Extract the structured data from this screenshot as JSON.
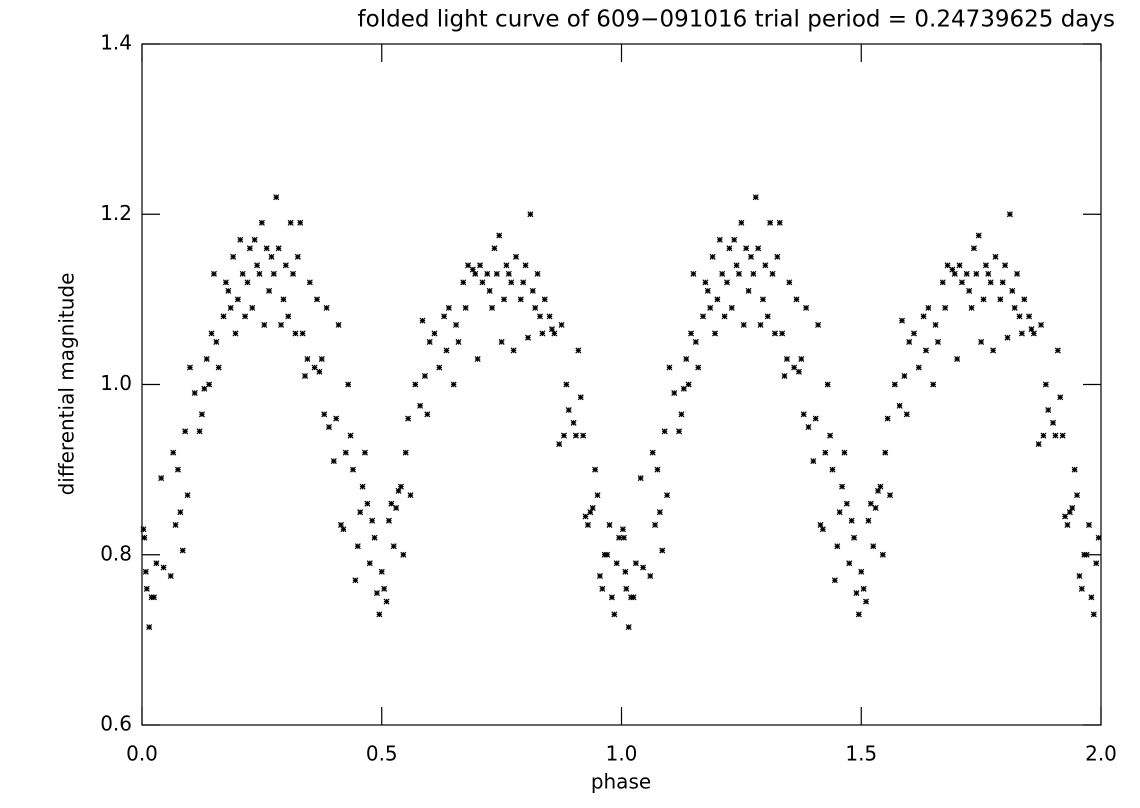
{
  "chart_data": {
    "type": "scatter",
    "title": "folded light curve of 609−091016 trial period =  0.24739625 days",
    "xlabel": "phase",
    "ylabel": "differential magnitude",
    "xlim": [
      0,
      2
    ],
    "ylim": [
      0.6,
      1.4
    ],
    "xticks": [
      {
        "value": 0,
        "label": "0.0"
      },
      0.5,
      {
        "value": 1,
        "label": "1.0"
      },
      1.5,
      {
        "value": 2,
        "label": "2.0"
      }
    ],
    "yticks": [
      0.6,
      0.8,
      {
        "value": 1,
        "label": "1.0"
      },
      1.2,
      1.4
    ],
    "color": "#000000",
    "x": [
      0.003,
      0.005,
      0.008,
      0.01,
      0.015,
      0.02,
      0.025,
      0.03,
      0.04,
      0.045,
      0.06,
      0.065,
      0.07,
      0.075,
      0.08,
      0.085,
      0.09,
      0.095,
      0.1,
      0.11,
      0.12,
      0.125,
      0.13,
      0.135,
      0.14,
      0.145,
      0.15,
      0.155,
      0.16,
      0.17,
      0.175,
      0.18,
      0.185,
      0.19,
      0.195,
      0.2,
      0.205,
      0.21,
      0.215,
      0.22,
      0.225,
      0.23,
      0.235,
      0.24,
      0.245,
      0.25,
      0.255,
      0.26,
      0.265,
      0.27,
      0.275,
      0.28,
      0.285,
      0.29,
      0.295,
      0.3,
      0.305,
      0.31,
      0.315,
      0.32,
      0.325,
      0.33,
      0.335,
      0.34,
      0.345,
      0.35,
      0.36,
      0.365,
      0.37,
      0.375,
      0.38,
      0.385,
      0.39,
      0.4,
      0.405,
      0.41,
      0.415,
      0.42,
      0.425,
      0.43,
      0.435,
      0.44,
      0.445,
      0.45,
      0.455,
      0.46,
      0.465,
      0.47,
      0.475,
      0.48,
      0.485,
      0.49,
      0.495,
      0.5,
      0.505,
      0.51,
      0.515,
      0.52,
      0.525,
      0.53,
      0.535,
      0.54,
      0.545,
      0.55,
      0.555,
      0.56,
      0.57,
      0.58,
      0.585,
      0.59,
      0.595,
      0.6,
      0.61,
      0.62,
      0.63,
      0.635,
      0.64,
      0.65,
      0.655,
      0.66,
      0.67,
      0.675,
      0.68,
      0.69,
      0.695,
      0.7,
      0.705,
      0.71,
      0.72,
      0.725,
      0.73,
      0.735,
      0.74,
      0.745,
      0.75,
      0.755,
      0.76,
      0.765,
      0.77,
      0.775,
      0.78,
      0.79,
      0.795,
      0.8,
      0.805,
      0.81,
      0.815,
      0.82,
      0.825,
      0.83,
      0.835,
      0.84,
      0.85,
      0.855,
      0.86,
      0.87,
      0.875,
      0.88,
      0.885,
      0.89,
      0.9,
      0.905,
      0.91,
      0.915,
      0.92,
      0.925,
      0.93,
      0.935,
      0.94,
      0.945,
      0.95,
      0.955,
      0.96,
      0.965,
      0.97,
      0.975,
      0.98,
      0.985,
      0.99,
      0.995,
      1.003,
      1.005,
      1.008,
      1.01,
      1.015,
      1.02,
      1.025,
      1.03,
      1.04,
      1.045,
      1.06,
      1.065,
      1.07,
      1.075,
      1.08,
      1.085,
      1.09,
      1.095,
      1.1,
      1.11,
      1.12,
      1.125,
      1.13,
      1.135,
      1.14,
      1.145,
      1.15,
      1.155,
      1.16,
      1.17,
      1.175,
      1.18,
      1.185,
      1.19,
      1.195,
      1.2,
      1.205,
      1.21,
      1.215,
      1.22,
      1.225,
      1.23,
      1.235,
      1.24,
      1.245,
      1.25,
      1.255,
      1.26,
      1.265,
      1.27,
      1.275,
      1.28,
      1.285,
      1.29,
      1.295,
      1.3,
      1.305,
      1.31,
      1.315,
      1.32,
      1.325,
      1.33,
      1.335,
      1.34,
      1.345,
      1.35,
      1.36,
      1.365,
      1.37,
      1.375,
      1.38,
      1.385,
      1.39,
      1.4,
      1.405,
      1.41,
      1.415,
      1.42,
      1.425,
      1.43,
      1.435,
      1.44,
      1.445,
      1.45,
      1.455,
      1.46,
      1.465,
      1.47,
      1.475,
      1.48,
      1.485,
      1.49,
      1.495,
      1.5,
      1.505,
      1.51,
      1.515,
      1.52,
      1.525,
      1.53,
      1.535,
      1.54,
      1.545,
      1.55,
      1.555,
      1.56,
      1.57,
      1.58,
      1.585,
      1.59,
      1.595,
      1.6,
      1.61,
      1.62,
      1.63,
      1.635,
      1.64,
      1.65,
      1.655,
      1.66,
      1.67,
      1.675,
      1.68,
      1.69,
      1.695,
      1.7,
      1.705,
      1.71,
      1.72,
      1.725,
      1.73,
      1.735,
      1.74,
      1.745,
      1.75,
      1.755,
      1.76,
      1.765,
      1.77,
      1.775,
      1.78,
      1.79,
      1.795,
      1.8,
      1.805,
      1.81,
      1.815,
      1.82,
      1.825,
      1.83,
      1.835,
      1.84,
      1.85,
      1.855,
      1.86,
      1.87,
      1.875,
      1.88,
      1.885,
      1.89,
      1.9,
      1.905,
      1.91,
      1.915,
      1.92,
      1.925,
      1.93,
      1.935,
      1.94,
      1.945,
      1.95,
      1.955,
      1.96,
      1.965,
      1.97,
      1.975,
      1.98,
      1.985,
      1.99,
      1.995
    ],
    "values": [
      0.83,
      0.82,
      0.78,
      0.76,
      0.715,
      0.75,
      0.75,
      0.79,
      0.89,
      0.785,
      0.775,
      0.92,
      0.835,
      0.9,
      0.85,
      0.805,
      0.945,
      0.87,
      1.02,
      0.99,
      0.945,
      0.965,
      0.995,
      1.03,
      1.0,
      1.06,
      1.13,
      1.05,
      1.02,
      1.08,
      1.12,
      1.11,
      1.09,
      1.15,
      1.06,
      1.1,
      1.17,
      1.13,
      1.08,
      1.12,
      1.16,
      1.09,
      1.17,
      1.14,
      1.13,
      1.19,
      1.07,
      1.16,
      1.11,
      1.15,
      1.13,
      1.22,
      1.16,
      1.07,
      1.1,
      1.14,
      1.08,
      1.19,
      1.13,
      1.06,
      1.15,
      1.19,
      1.06,
      1.01,
      1.03,
      1.12,
      1.02,
      1.1,
      1.015,
      1.03,
      0.965,
      1.09,
      0.95,
      0.91,
      0.96,
      1.07,
      0.835,
      0.83,
      0.92,
      1.0,
      0.94,
      0.9,
      0.77,
      0.81,
      0.85,
      0.88,
      0.92,
      0.86,
      0.79,
      0.84,
      0.82,
      0.755,
      0.73,
      0.78,
      0.76,
      0.745,
      0.84,
      0.86,
      0.81,
      0.855,
      0.875,
      0.88,
      0.8,
      0.92,
      0.96,
      0.87,
      1.0,
      0.975,
      1.075,
      1.01,
      0.965,
      1.05,
      1.06,
      1.02,
      1.08,
      1.04,
      1.09,
      1.0,
      1.07,
      1.05,
      1.12,
      1.09,
      1.14,
      1.135,
      1.13,
      1.03,
      1.14,
      1.12,
      1.13,
      1.11,
      1.09,
      1.16,
      1.13,
      1.175,
      1.05,
      1.1,
      1.14,
      1.13,
      1.12,
      1.04,
      1.15,
      1.1,
      1.12,
      1.14,
      1.055,
      1.2,
      1.11,
      1.09,
      1.13,
      1.08,
      1.06,
      1.1,
      1.08,
      1.065,
      1.06,
      0.93,
      1.07,
      0.94,
      1.0,
      0.97,
      0.955,
      0.94,
      1.04,
      0.985,
      0.94,
      0.845,
      0.835,
      0.85,
      0.855,
      0.9,
      0.87,
      0.775,
      0.76,
      0.8,
      0.8,
      0.835,
      0.75,
      0.73,
      0.79,
      0.82,
      0.83,
      0.82,
      0.78,
      0.76,
      0.715,
      0.75,
      0.75,
      0.79,
      0.89,
      0.785,
      0.775,
      0.92,
      0.835,
      0.9,
      0.85,
      0.805,
      0.945,
      0.87,
      1.02,
      0.99,
      0.945,
      0.965,
      0.995,
      1.03,
      1.0,
      1.06,
      1.13,
      1.05,
      1.02,
      1.08,
      1.12,
      1.11,
      1.09,
      1.15,
      1.06,
      1.1,
      1.17,
      1.13,
      1.08,
      1.12,
      1.16,
      1.09,
      1.17,
      1.14,
      1.13,
      1.19,
      1.07,
      1.16,
      1.11,
      1.15,
      1.13,
      1.22,
      1.16,
      1.07,
      1.1,
      1.14,
      1.08,
      1.19,
      1.13,
      1.06,
      1.15,
      1.19,
      1.06,
      1.01,
      1.03,
      1.12,
      1.02,
      1.1,
      1.015,
      1.03,
      0.965,
      1.09,
      0.95,
      0.91,
      0.96,
      1.07,
      0.835,
      0.83,
      0.92,
      1.0,
      0.94,
      0.9,
      0.77,
      0.81,
      0.85,
      0.88,
      0.92,
      0.86,
      0.79,
      0.84,
      0.82,
      0.755,
      0.73,
      0.78,
      0.76,
      0.745,
      0.84,
      0.86,
      0.81,
      0.855,
      0.875,
      0.88,
      0.8,
      0.92,
      0.96,
      0.87,
      1.0,
      0.975,
      1.075,
      1.01,
      0.965,
      1.05,
      1.06,
      1.02,
      1.08,
      1.04,
      1.09,
      1.0,
      1.07,
      1.05,
      1.12,
      1.09,
      1.14,
      1.135,
      1.13,
      1.03,
      1.14,
      1.12,
      1.13,
      1.11,
      1.09,
      1.16,
      1.13,
      1.175,
      1.05,
      1.1,
      1.14,
      1.13,
      1.12,
      1.04,
      1.15,
      1.1,
      1.12,
      1.14,
      1.055,
      1.2,
      1.11,
      1.09,
      1.13,
      1.08,
      1.06,
      1.1,
      1.08,
      1.065,
      1.06,
      0.93,
      1.07,
      0.94,
      1.0,
      0.97,
      0.955,
      0.94,
      1.04,
      0.985,
      0.94,
      0.845,
      0.835,
      0.85,
      0.855,
      0.9,
      0.87,
      0.775,
      0.76,
      0.8,
      0.8,
      0.835,
      0.75,
      0.73,
      0.79,
      0.82
    ]
  }
}
